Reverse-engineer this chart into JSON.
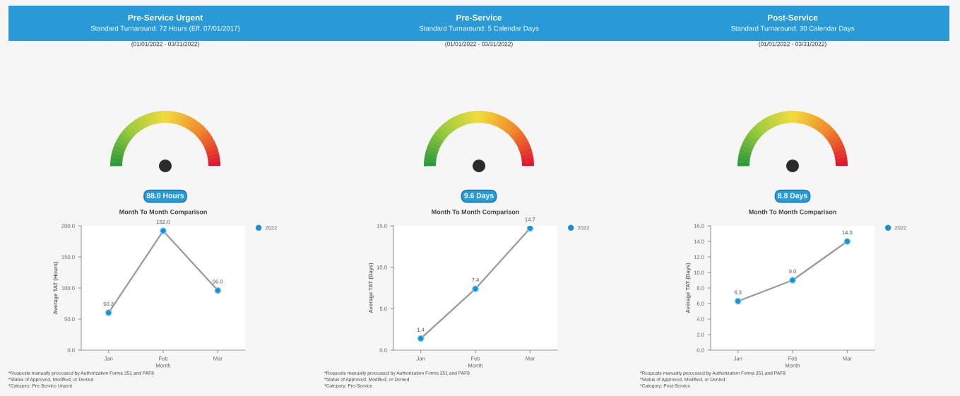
{
  "chart_data": [
    {
      "type": "other",
      "title": "Pre-Service Urgent",
      "subtitle": "Standard Turnaround: 72 Hours (Eff. 07/01/2017)",
      "annotations": [
        "(01/01/2022 - 03/31/2022)",
        "88.0 Hours"
      ]
    },
    {
      "type": "other",
      "title": "Pre-Service",
      "subtitle": "Standard Turnaround: 5 Calendar Days",
      "annotations": [
        "(01/01/2022 - 03/31/2022)",
        "9.6 Days"
      ]
    },
    {
      "type": "other",
      "title": "Post-Service",
      "subtitle": "Standard Turnaround: 30 Calendar Days",
      "annotations": [
        "(01/01/2022 - 03/31/2022)",
        "8.8 Days"
      ]
    },
    {
      "type": "line",
      "title": "Month To Month Comparison",
      "xlabel": "Month",
      "ylabel": "Average TAT (Hours)",
      "categories": [
        "Jan",
        "Feb",
        "Mar"
      ],
      "series": [
        {
          "name": "2022",
          "color": "#1a8fd1",
          "values": [
            60.2,
            192.0,
            96.0
          ],
          "value_labels": [
            "60.2",
            "192.0",
            "96.0"
          ]
        }
      ],
      "ylim": [
        0,
        200
      ],
      "yticks": [
        {
          "value": 0,
          "label": "0.0"
        },
        {
          "value": 50,
          "label": "50.0"
        },
        {
          "value": 100,
          "label": "100.0"
        },
        {
          "value": 150,
          "label": "150.0"
        },
        {
          "value": 200,
          "label": "200.0"
        }
      ],
      "marker": "circle",
      "legend": "top right",
      "grid": false,
      "annotations": [
        "*Requests manually processed by Authorization Forms 351 and PAF8",
        "*Status of Approved, Modified, or Denied",
        "*Category: Pre-Service Urgent"
      ]
    },
    {
      "type": "line",
      "title": "Month To Month Comparison",
      "xlabel": "Month",
      "ylabel": "Average TAT (Days)",
      "categories": [
        "Jan",
        "Feb",
        "Mar"
      ],
      "series": [
        {
          "name": "2022",
          "color": "#1a8fd1",
          "values": [
            1.4,
            7.4,
            14.7
          ],
          "value_labels": [
            "1.4",
            "7.4",
            "14.7"
          ]
        }
      ],
      "ylim": [
        0,
        15
      ],
      "yticks": [
        {
          "value": 0,
          "label": "0.0"
        },
        {
          "value": 5,
          "label": "5.0"
        },
        {
          "value": 10,
          "label": "10.0"
        },
        {
          "value": 15,
          "label": "15.0"
        }
      ],
      "marker": "circle",
      "legend": "top right",
      "grid": false,
      "annotations": [
        "*Requests manually processed by Authorization Forms 351 and PAF8",
        "*Status of Approved, Modified, or Denied",
        "*Category: Pre-Service"
      ]
    },
    {
      "type": "line",
      "title": "Month To Month Comparison",
      "xlabel": "Month",
      "ylabel": "Average TAT (Days)",
      "categories": [
        "Jan",
        "Feb",
        "Mar"
      ],
      "series": [
        {
          "name": "2022",
          "color": "#1a8fd1",
          "values": [
            6.3,
            9.0,
            14.0
          ],
          "value_labels": [
            "6.3",
            "9.0",
            "14.0"
          ]
        }
      ],
      "ylim": [
        0,
        16
      ],
      "yticks": [
        {
          "value": 0,
          "label": "0.0"
        },
        {
          "value": 2,
          "label": "2.0"
        },
        {
          "value": 4,
          "label": "4.0"
        },
        {
          "value": 6,
          "label": "6.0"
        },
        {
          "value": 8,
          "label": "8.0"
        },
        {
          "value": 10,
          "label": "10.0"
        },
        {
          "value": 12,
          "label": "12.0"
        },
        {
          "value": 14,
          "label": "14.0"
        },
        {
          "value": 16,
          "label": "16.0"
        }
      ],
      "marker": "circle",
      "legend": "top right",
      "grid": false,
      "annotations": [
        "*Requests manually processed by Authorization Forms 351 and PAF8",
        "*Status of Approved, Modified, or Denied",
        "*Category: Post-Service"
      ]
    }
  ]
}
